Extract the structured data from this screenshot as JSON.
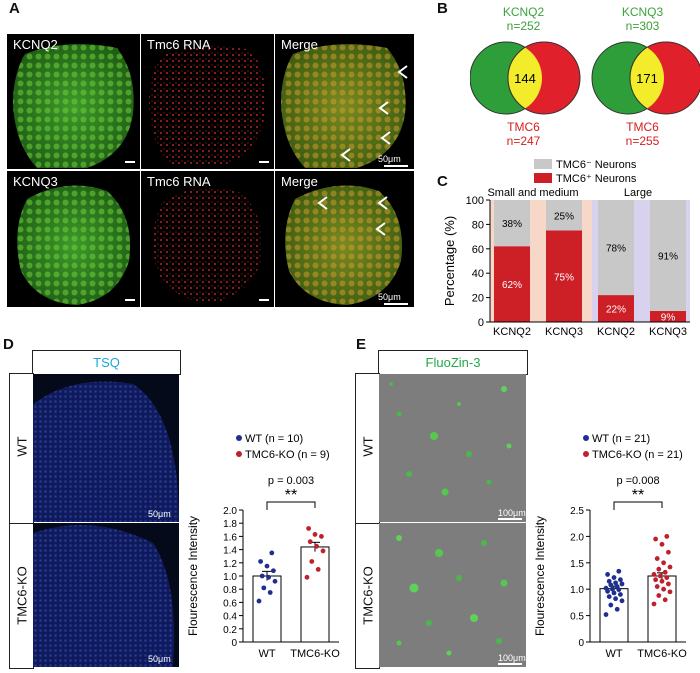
{
  "panel_a": {
    "letter": "A",
    "rows": [
      [
        "KCNQ2",
        "Tmc6 RNA",
        "Merge"
      ],
      [
        "KCNQ3",
        "Tmc6 RNA",
        "Merge"
      ]
    ],
    "scale_bar": "50μm"
  },
  "panel_b": {
    "letter": "B",
    "venns": [
      {
        "top": "KCNQ2",
        "top_n": "n=252",
        "center": "144",
        "bottom": "TMC6",
        "bottom_n": "n=247"
      },
      {
        "top": "KCNQ3",
        "top_n": "n=303",
        "center": "171",
        "bottom": "TMC6",
        "bottom_n": "n=255"
      }
    ],
    "colors": {
      "green": "#2e9e3a",
      "red": "#e0202a",
      "yellow": "#f2ec2a",
      "top_text": "#3aa23a",
      "bottom_text": "#d42020"
    }
  },
  "panel_c": {
    "letter": "C",
    "legend": [
      "TMC6⁻ Neurons",
      "TMC6⁺ Neurons"
    ],
    "group_labels": [
      "Small and medium",
      "Large"
    ],
    "colors": {
      "neg": "#c8c8c8",
      "pos": "#cc1f26",
      "bg_small": "#f7d8c8",
      "bg_large": "#d8d2ee"
    }
  },
  "panel_d": {
    "letter": "D",
    "stain": "TSQ",
    "rows": [
      "WT",
      "TMC6-KO"
    ],
    "scale_bar": "50μm",
    "legend": [
      "WT (n = 10)",
      "TMC6-KO (n = 9)"
    ],
    "pvalue": "p = 0.003",
    "stars": "**",
    "colors": {
      "wt": "#1f2f8f",
      "ko": "#c0202a"
    }
  },
  "panel_e": {
    "letter": "E",
    "stain": "FluoZin-3",
    "rows": [
      "WT",
      "TMC6-KO"
    ],
    "scale_bar": "100μm",
    "legend": [
      "WT (n = 21)",
      "TMC6-KO (n = 21)"
    ],
    "pvalue": "p =0.008",
    "stars": "**",
    "colors": {
      "wt": "#1f2f8f",
      "ko": "#c0202a"
    }
  },
  "chart_data": [
    {
      "type": "bar",
      "stacked": true,
      "categories": [
        "KCNQ2",
        "KCNQ3",
        "KCNQ2",
        "KCNQ3"
      ],
      "groups": [
        "Small and medium",
        "Small and medium",
        "Large",
        "Large"
      ],
      "series": [
        {
          "name": "TMC6⁺ Neurons",
          "values": [
            62,
            75,
            22,
            9
          ],
          "labels": [
            "62%",
            "75%",
            "22%",
            "9%"
          ]
        },
        {
          "name": "TMC6⁻ Neurons",
          "values": [
            38,
            25,
            78,
            91
          ],
          "labels": [
            "38%",
            "25%",
            "78%",
            "91%"
          ]
        }
      ],
      "ylabel": "Percentage (%)",
      "ylim": [
        0,
        100
      ],
      "yticks": [
        "0",
        "20",
        "40",
        "60",
        "80",
        "100"
      ]
    },
    {
      "type": "bar",
      "categories": [
        "WT",
        "TMC6-KO"
      ],
      "values": [
        1.0,
        1.44
      ],
      "sem": [
        0.07,
        0.07
      ],
      "points": {
        "WT": [
          0.62,
          0.75,
          0.82,
          0.92,
          0.98,
          1.0,
          1.08,
          1.15,
          1.22,
          1.35
        ],
        "TMC6-KO": [
          0.98,
          1.1,
          1.22,
          1.38,
          1.45,
          1.52,
          1.6,
          1.63,
          1.72
        ]
      },
      "ylabel": "Flourescence Intensity",
      "ylim": [
        0,
        2.0
      ],
      "yticks": [
        "0",
        "0.2",
        "0.4",
        "0.6",
        "0.8",
        "1.0",
        "1.2",
        "1.4",
        "1.6",
        "1.8",
        "2.0"
      ]
    },
    {
      "type": "bar",
      "categories": [
        "WT",
        "TMC6-KO"
      ],
      "values": [
        1.01,
        1.25
      ],
      "sem": [
        0.05,
        0.06
      ],
      "points": {
        "WT": [
          0.52,
          0.62,
          0.7,
          0.78,
          0.82,
          0.86,
          0.9,
          0.93,
          0.96,
          0.99,
          1.0,
          1.02,
          1.05,
          1.08,
          1.1,
          1.12,
          1.15,
          1.18,
          1.22,
          1.28,
          1.34
        ],
        "TMC6-KO": [
          0.72,
          0.8,
          0.88,
          0.95,
          1.0,
          1.05,
          1.1,
          1.15,
          1.18,
          1.22,
          1.25,
          1.28,
          1.32,
          1.38,
          1.42,
          1.5,
          1.58,
          1.7,
          1.85,
          1.95,
          2.0
        ]
      },
      "ylabel": "Flourescence Intensity",
      "ylim": [
        0,
        2.5
      ],
      "yticks": [
        "0",
        "0.5",
        "1.0",
        "1.5",
        "2.0",
        "2.5"
      ]
    }
  ]
}
